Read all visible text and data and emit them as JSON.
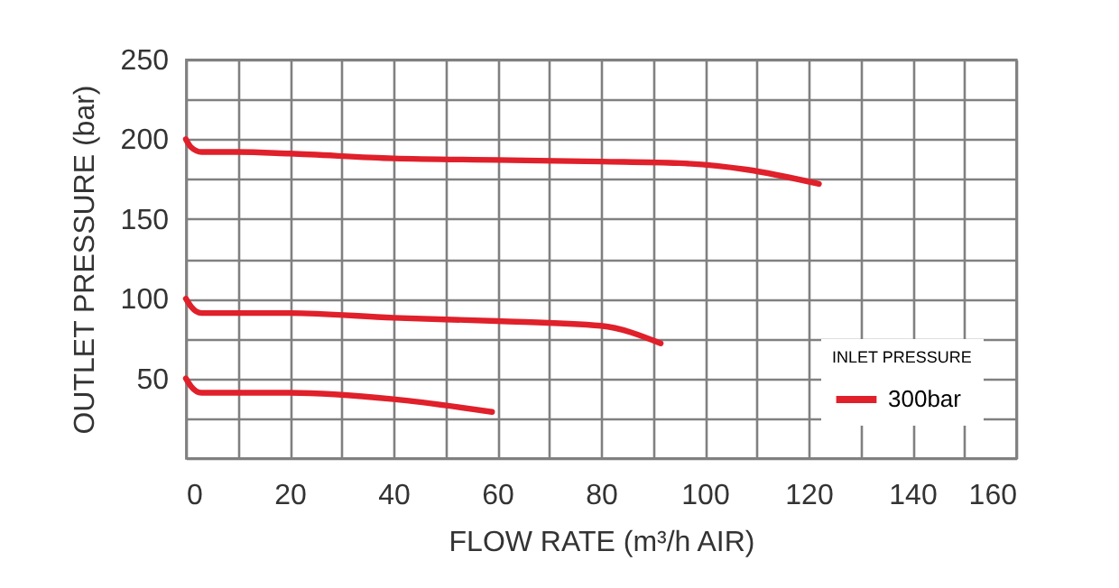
{
  "chart_data": {
    "type": "line",
    "xlabel": "FLOW RATE (m³/h AIR)",
    "ylabel": "OUTLET PRESSURE (bar)",
    "legend_title": "INLET PRESSURE",
    "xlim": [
      0,
      160
    ],
    "ylim": [
      0,
      250
    ],
    "xticks": [
      0,
      {
        "value": 10,
        "label": null
      },
      20,
      {
        "value": 30,
        "label": null
      },
      40,
      {
        "value": 50,
        "label": null
      },
      60,
      {
        "value": 70,
        "label": null
      },
      80,
      {
        "value": 90,
        "label": null
      },
      100,
      {
        "value": 110,
        "label": null
      },
      120,
      {
        "value": 130,
        "label": null
      },
      140,
      {
        "value": 150,
        "label": null
      },
      160
    ],
    "yticks": [
      {
        "value": 0,
        "label": null
      },
      {
        "value": 25,
        "label": null
      },
      50,
      {
        "value": 75,
        "label": null
      },
      100,
      {
        "value": 125,
        "label": null
      },
      150,
      {
        "value": 175,
        "label": null
      },
      200,
      {
        "value": 225,
        "label": null
      },
      250
    ],
    "grid": true,
    "legend": "bottom right",
    "marker": "none",
    "line_style": "solid",
    "series": [
      {
        "name": "300bar",
        "color": "#e0202a",
        "x": [
          0,
          1,
          3,
          10,
          20,
          40,
          60,
          80,
          95,
          108,
          122
        ],
        "values": [
          200,
          195,
          192,
          192,
          191,
          188,
          187,
          186,
          185,
          181,
          172
        ]
      },
      {
        "color": "#e0202a",
        "x": [
          0,
          1,
          3,
          10,
          20,
          40,
          60,
          80,
          91.5
        ],
        "values": [
          100,
          95,
          91,
          91,
          91,
          88,
          86,
          83,
          72
        ]
      },
      {
        "color": "#e0202a",
        "x": [
          0,
          1,
          3,
          10,
          20,
          40,
          59
        ],
        "values": [
          50,
          45,
          41,
          41,
          41,
          37,
          29
        ]
      }
    ]
  }
}
